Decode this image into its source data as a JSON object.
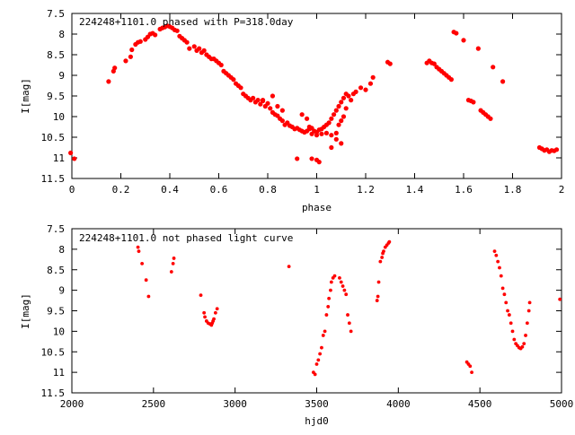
{
  "chart_data": [
    {
      "type": "scatter",
      "title": "224248+1101.0 phased with P=318.0day",
      "xlabel": "phase",
      "ylabel": "I[mag]",
      "xlim": [
        0,
        2
      ],
      "ylim": [
        11.5,
        7.5
      ],
      "y_inverted": true,
      "grid": false,
      "xticks": [
        0,
        0.2,
        0.4,
        0.6,
        0.8,
        1,
        1.2,
        1.4,
        1.6,
        1.8,
        2
      ],
      "xtick_labels": [
        "0",
        "0.2",
        "0.4",
        "0.6",
        "0.8",
        "1",
        "1.2",
        "1.4",
        "1.6",
        "1.8",
        "2"
      ],
      "yticks": [
        7.5,
        8,
        8.5,
        9,
        9.5,
        10,
        10.5,
        11,
        11.5
      ],
      "ytick_labels": [
        "7.5",
        "8",
        "8.5",
        "9",
        "9.5",
        "10",
        "10.5",
        "11",
        "11.5"
      ],
      "marker_color": "#ff0000",
      "series": [
        {
          "points": [
            [
              -0.005,
              10.88
            ],
            [
              0.01,
              11.02
            ],
            [
              0.15,
              9.15
            ],
            [
              0.17,
              8.9
            ],
            [
              0.175,
              8.82
            ],
            [
              0.22,
              8.65
            ],
            [
              0.24,
              8.55
            ],
            [
              0.245,
              8.38
            ],
            [
              0.26,
              8.25
            ],
            [
              0.27,
              8.2
            ],
            [
              0.28,
              8.18
            ],
            [
              0.3,
              8.13
            ],
            [
              0.31,
              8.07
            ],
            [
              0.32,
              8.0
            ],
            [
              0.33,
              7.98
            ],
            [
              0.34,
              8.02
            ],
            [
              0.36,
              7.88
            ],
            [
              0.37,
              7.85
            ],
            [
              0.38,
              7.83
            ],
            [
              0.39,
              7.8
            ],
            [
              0.4,
              7.82
            ],
            [
              0.41,
              7.85
            ],
            [
              0.42,
              7.9
            ],
            [
              0.43,
              7.92
            ],
            [
              0.44,
              8.05
            ],
            [
              0.45,
              8.1
            ],
            [
              0.46,
              8.15
            ],
            [
              0.47,
              8.2
            ],
            [
              0.48,
              8.35
            ],
            [
              0.5,
              8.3
            ],
            [
              0.51,
              8.4
            ],
            [
              0.52,
              8.35
            ],
            [
              0.53,
              8.45
            ],
            [
              0.54,
              8.4
            ],
            [
              0.55,
              8.5
            ],
            [
              0.56,
              8.55
            ],
            [
              0.57,
              8.6
            ],
            [
              0.58,
              8.6
            ],
            [
              0.59,
              8.65
            ],
            [
              0.6,
              8.7
            ],
            [
              0.61,
              8.75
            ],
            [
              0.62,
              8.9
            ],
            [
              0.63,
              8.95
            ],
            [
              0.64,
              9.0
            ],
            [
              0.65,
              9.05
            ],
            [
              0.66,
              9.1
            ],
            [
              0.67,
              9.2
            ],
            [
              0.68,
              9.25
            ],
            [
              0.69,
              9.3
            ],
            [
              0.7,
              9.45
            ],
            [
              0.71,
              9.5
            ],
            [
              0.72,
              9.55
            ],
            [
              0.73,
              9.6
            ],
            [
              0.74,
              9.55
            ],
            [
              0.75,
              9.65
            ],
            [
              0.76,
              9.6
            ],
            [
              0.77,
              9.7
            ],
            [
              0.78,
              9.62
            ],
            [
              0.79,
              9.75
            ],
            [
              0.8,
              9.68
            ],
            [
              0.81,
              9.8
            ],
            [
              0.82,
              9.9
            ],
            [
              0.83,
              9.95
            ],
            [
              0.84,
              9.98
            ],
            [
              0.85,
              10.05
            ],
            [
              0.86,
              10.1
            ],
            [
              0.87,
              10.2
            ],
            [
              0.88,
              10.15
            ],
            [
              0.89,
              10.22
            ],
            [
              0.9,
              10.25
            ],
            [
              0.91,
              10.3
            ],
            [
              0.92,
              10.28
            ],
            [
              0.93,
              10.32
            ],
            [
              0.94,
              10.35
            ],
            [
              0.95,
              10.38
            ],
            [
              0.96,
              10.35
            ],
            [
              0.97,
              10.3
            ],
            [
              0.98,
              10.28
            ],
            [
              0.99,
              10.35
            ],
            [
              1.0,
              10.38
            ],
            [
              1.01,
              10.32
            ],
            [
              1.02,
              10.3
            ],
            [
              1.03,
              10.25
            ],
            [
              1.04,
              10.2
            ],
            [
              1.05,
              10.15
            ],
            [
              1.06,
              10.05
            ],
            [
              1.07,
              9.95
            ],
            [
              1.08,
              9.85
            ],
            [
              1.09,
              9.75
            ],
            [
              1.1,
              9.65
            ],
            [
              1.11,
              9.55
            ],
            [
              1.12,
              9.45
            ],
            [
              1.13,
              9.5
            ],
            [
              0.78,
              9.6
            ],
            [
              0.82,
              9.5
            ],
            [
              0.84,
              9.75
            ],
            [
              0.86,
              9.85
            ],
            [
              0.94,
              9.95
            ],
            [
              0.96,
              10.05
            ],
            [
              0.97,
              10.25
            ],
            [
              0.98,
              10.42
            ],
            [
              1.0,
              10.45
            ],
            [
              1.02,
              10.42
            ],
            [
              1.04,
              10.4
            ],
            [
              1.06,
              10.45
            ],
            [
              1.08,
              10.4
            ],
            [
              1.09,
              10.2
            ],
            [
              1.1,
              10.1
            ],
            [
              1.11,
              10.0
            ],
            [
              1.12,
              9.8
            ],
            [
              1.14,
              9.6
            ],
            [
              1.15,
              9.45
            ],
            [
              1.16,
              9.4
            ],
            [
              1.18,
              9.3
            ],
            [
              1.2,
              9.35
            ],
            [
              1.22,
              9.2
            ],
            [
              1.23,
              9.05
            ],
            [
              1.1,
              10.65
            ],
            [
              1.08,
              10.55
            ],
            [
              1.06,
              10.75
            ],
            [
              0.92,
              11.02
            ],
            [
              0.98,
              11.02
            ],
            [
              1.0,
              11.05
            ],
            [
              1.01,
              11.1
            ],
            [
              1.29,
              8.68
            ],
            [
              1.3,
              8.72
            ],
            [
              1.45,
              8.7
            ],
            [
              1.46,
              8.65
            ],
            [
              1.47,
              8.7
            ],
            [
              1.48,
              8.72
            ],
            [
              1.49,
              8.8
            ],
            [
              1.5,
              8.85
            ],
            [
              1.51,
              8.9
            ],
            [
              1.52,
              8.95
            ],
            [
              1.53,
              9.0
            ],
            [
              1.54,
              9.05
            ],
            [
              1.55,
              9.1
            ],
            [
              1.56,
              7.95
            ],
            [
              1.57,
              7.98
            ],
            [
              1.6,
              8.15
            ],
            [
              1.62,
              9.6
            ],
            [
              1.63,
              9.62
            ],
            [
              1.64,
              9.65
            ],
            [
              1.66,
              8.35
            ],
            [
              1.67,
              9.85
            ],
            [
              1.68,
              9.9
            ],
            [
              1.69,
              9.95
            ],
            [
              1.7,
              10.0
            ],
            [
              1.71,
              10.05
            ],
            [
              1.72,
              8.8
            ],
            [
              1.76,
              9.15
            ],
            [
              1.91,
              10.75
            ],
            [
              1.92,
              10.78
            ],
            [
              1.93,
              10.82
            ],
            [
              1.94,
              10.8
            ],
            [
              1.95,
              10.85
            ],
            [
              1.96,
              10.82
            ],
            [
              1.97,
              10.83
            ],
            [
              1.98,
              10.8
            ]
          ]
        }
      ]
    },
    {
      "type": "scatter",
      "title": "224248+1101.0 not phased light curve",
      "xlabel": "hjd0",
      "ylabel": "I[mag]",
      "xlim": [
        2000,
        5000
      ],
      "ylim": [
        11.5,
        7.5
      ],
      "y_inverted": true,
      "grid": false,
      "xticks": [
        2000,
        2500,
        3000,
        3500,
        4000,
        4500,
        5000
      ],
      "xtick_labels": [
        "2000",
        "2500",
        "3000",
        "3500",
        "4000",
        "4500",
        "5000"
      ],
      "yticks": [
        7.5,
        8,
        8.5,
        9,
        9.5,
        10,
        10.5,
        11,
        11.5
      ],
      "ytick_labels": [
        "7.5",
        "8",
        "8.5",
        "9",
        "9.5",
        "10",
        "10.5",
        "11",
        "11.5"
      ],
      "marker_color": "#ff0000",
      "series": [
        {
          "points": [
            [
              2405,
              7.95
            ],
            [
              2410,
              8.05
            ],
            [
              2430,
              8.35
            ],
            [
              2455,
              8.75
            ],
            [
              2470,
              9.15
            ],
            [
              2610,
              8.55
            ],
            [
              2620,
              8.35
            ],
            [
              2625,
              8.22
            ],
            [
              2790,
              9.12
            ],
            [
              2810,
              9.55
            ],
            [
              2815,
              9.65
            ],
            [
              2825,
              9.75
            ],
            [
              2835,
              9.8
            ],
            [
              2845,
              9.82
            ],
            [
              2855,
              9.85
            ],
            [
              2860,
              9.8
            ],
            [
              2865,
              9.75
            ],
            [
              2870,
              9.7
            ],
            [
              2880,
              9.55
            ],
            [
              2890,
              9.45
            ],
            [
              3330,
              8.42
            ],
            [
              3480,
              11.0
            ],
            [
              3490,
              11.05
            ],
            [
              3500,
              10.8
            ],
            [
              3510,
              10.7
            ],
            [
              3520,
              10.55
            ],
            [
              3530,
              10.4
            ],
            [
              3540,
              10.1
            ],
            [
              3550,
              10.0
            ],
            [
              3560,
              9.6
            ],
            [
              3570,
              9.4
            ],
            [
              3575,
              9.2
            ],
            [
              3585,
              9.0
            ],
            [
              3590,
              8.8
            ],
            [
              3600,
              8.7
            ],
            [
              3610,
              8.65
            ],
            [
              3640,
              8.7
            ],
            [
              3650,
              8.8
            ],
            [
              3660,
              8.9
            ],
            [
              3670,
              9.0
            ],
            [
              3680,
              9.1
            ],
            [
              3690,
              9.6
            ],
            [
              3700,
              9.8
            ],
            [
              3710,
              10.0
            ],
            [
              3870,
              9.25
            ],
            [
              3875,
              9.15
            ],
            [
              3880,
              8.8
            ],
            [
              3890,
              8.3
            ],
            [
              3900,
              8.2
            ],
            [
              3905,
              8.1
            ],
            [
              3910,
              8.05
            ],
            [
              3920,
              7.95
            ],
            [
              3930,
              7.9
            ],
            [
              3940,
              7.85
            ],
            [
              3945,
              7.82
            ],
            [
              4420,
              10.75
            ],
            [
              4430,
              10.8
            ],
            [
              4440,
              10.85
            ],
            [
              4450,
              11.0
            ],
            [
              4590,
              8.05
            ],
            [
              4600,
              8.15
            ],
            [
              4610,
              8.3
            ],
            [
              4620,
              8.45
            ],
            [
              4630,
              8.65
            ],
            [
              4640,
              8.95
            ],
            [
              4650,
              9.1
            ],
            [
              4660,
              9.3
            ],
            [
              4670,
              9.5
            ],
            [
              4680,
              9.6
            ],
            [
              4690,
              9.8
            ],
            [
              4700,
              10.0
            ],
            [
              4710,
              10.2
            ],
            [
              4720,
              10.3
            ],
            [
              4730,
              10.35
            ],
            [
              4740,
              10.4
            ],
            [
              4750,
              10.42
            ],
            [
              4760,
              10.38
            ],
            [
              4770,
              10.3
            ],
            [
              4780,
              10.1
            ],
            [
              4790,
              9.8
            ],
            [
              4800,
              9.5
            ],
            [
              4805,
              9.3
            ],
            [
              4990,
              9.22
            ]
          ]
        }
      ]
    }
  ]
}
